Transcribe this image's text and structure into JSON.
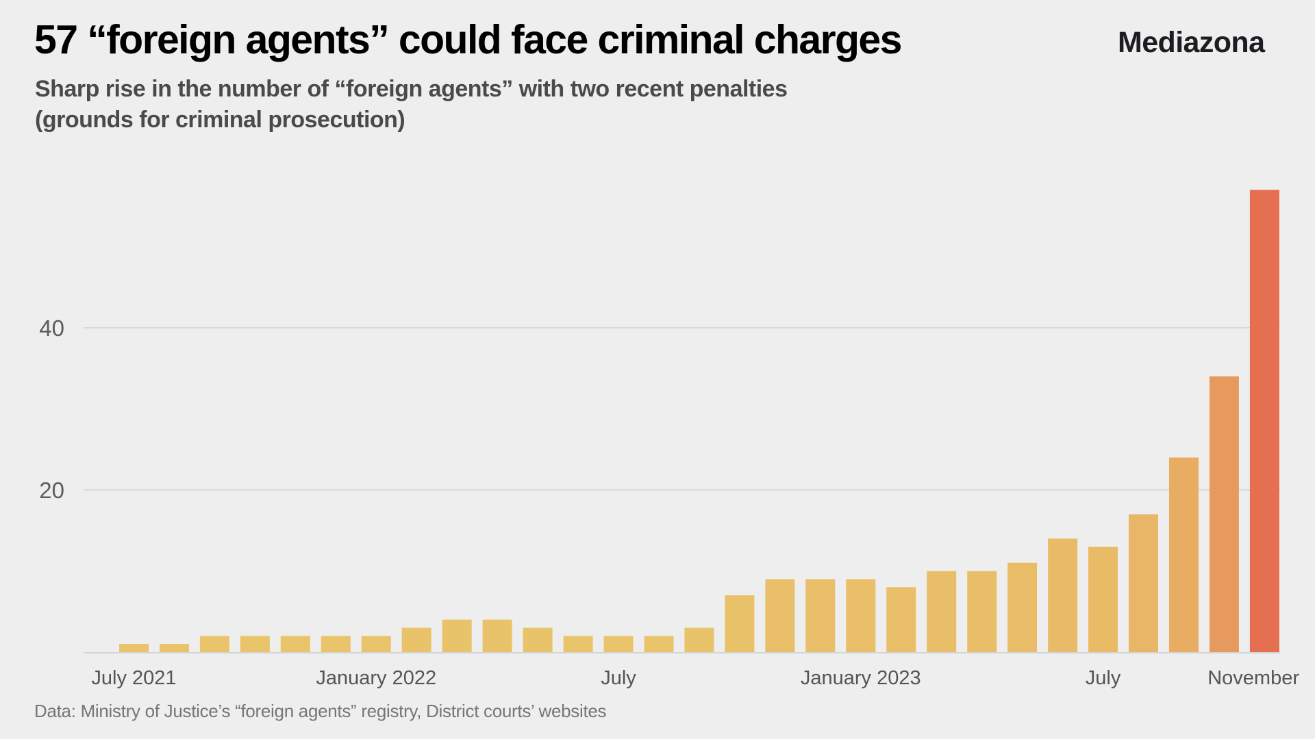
{
  "header": {
    "title": "57 “foreign agents” could face criminal charges",
    "subtitle_lines": [
      "Sharp rise in the number of “foreign agents” with two recent penalties",
      "(grounds for criminal prosecution)"
    ],
    "brand": "Mediazona"
  },
  "footer": {
    "source": "Data: Ministry of Justice’s “foreign agents” registry, District courts’ websites"
  },
  "chart_data": {
    "type": "bar",
    "title": "57 “foreign agents” could face criminal charges",
    "subtitle": "Sharp rise in the number of “foreign agents” with two recent penalties (grounds for criminal prosecution)",
    "xlabel": "",
    "ylabel": "",
    "ylim": [
      0,
      57
    ],
    "grid": true,
    "legend": "none",
    "yticks": [
      {
        "value": 20,
        "label": "20"
      },
      {
        "value": 40,
        "label": "40"
      }
    ],
    "categories": [
      "Jul 2021",
      "Aug 2021",
      "Sep 2021",
      "Oct 2021",
      "Nov 2021",
      "Dec 2021",
      "Jan 2022",
      "Feb 2022",
      "Mar 2022",
      "Apr 2022",
      "May 2022",
      "Jun 2022",
      "Jul 2022",
      "Aug 2022",
      "Sep 2022",
      "Oct 2022",
      "Nov 2022",
      "Dec 2022",
      "Jan 2023",
      "Feb 2023",
      "Mar 2023",
      "Apr 2023",
      "May 2023",
      "Jun 2023",
      "Jul 2023",
      "Aug 2023",
      "Sep 2023",
      "Oct 2023",
      "Nov 2023"
    ],
    "values": [
      1,
      1,
      2,
      2,
      2,
      2,
      2,
      3,
      4,
      4,
      3,
      2,
      2,
      2,
      3,
      7,
      9,
      9,
      9,
      8,
      10,
      10,
      11,
      14,
      13,
      17,
      24,
      34,
      57
    ],
    "xtick_labels": [
      {
        "index": 0,
        "label": "July 2021"
      },
      {
        "index": 6,
        "label": "January 2022"
      },
      {
        "index": 12,
        "label": "July"
      },
      {
        "index": 18,
        "label": "January 2023"
      },
      {
        "index": 24,
        "label": "July"
      },
      {
        "index": 28,
        "label": "November"
      }
    ],
    "color_scale": {
      "low": "#e9c46a",
      "mid": "#e79a5e",
      "high": "#e56f51"
    },
    "background": "#eeeeee",
    "gridline_color": "#d9d9d9"
  }
}
